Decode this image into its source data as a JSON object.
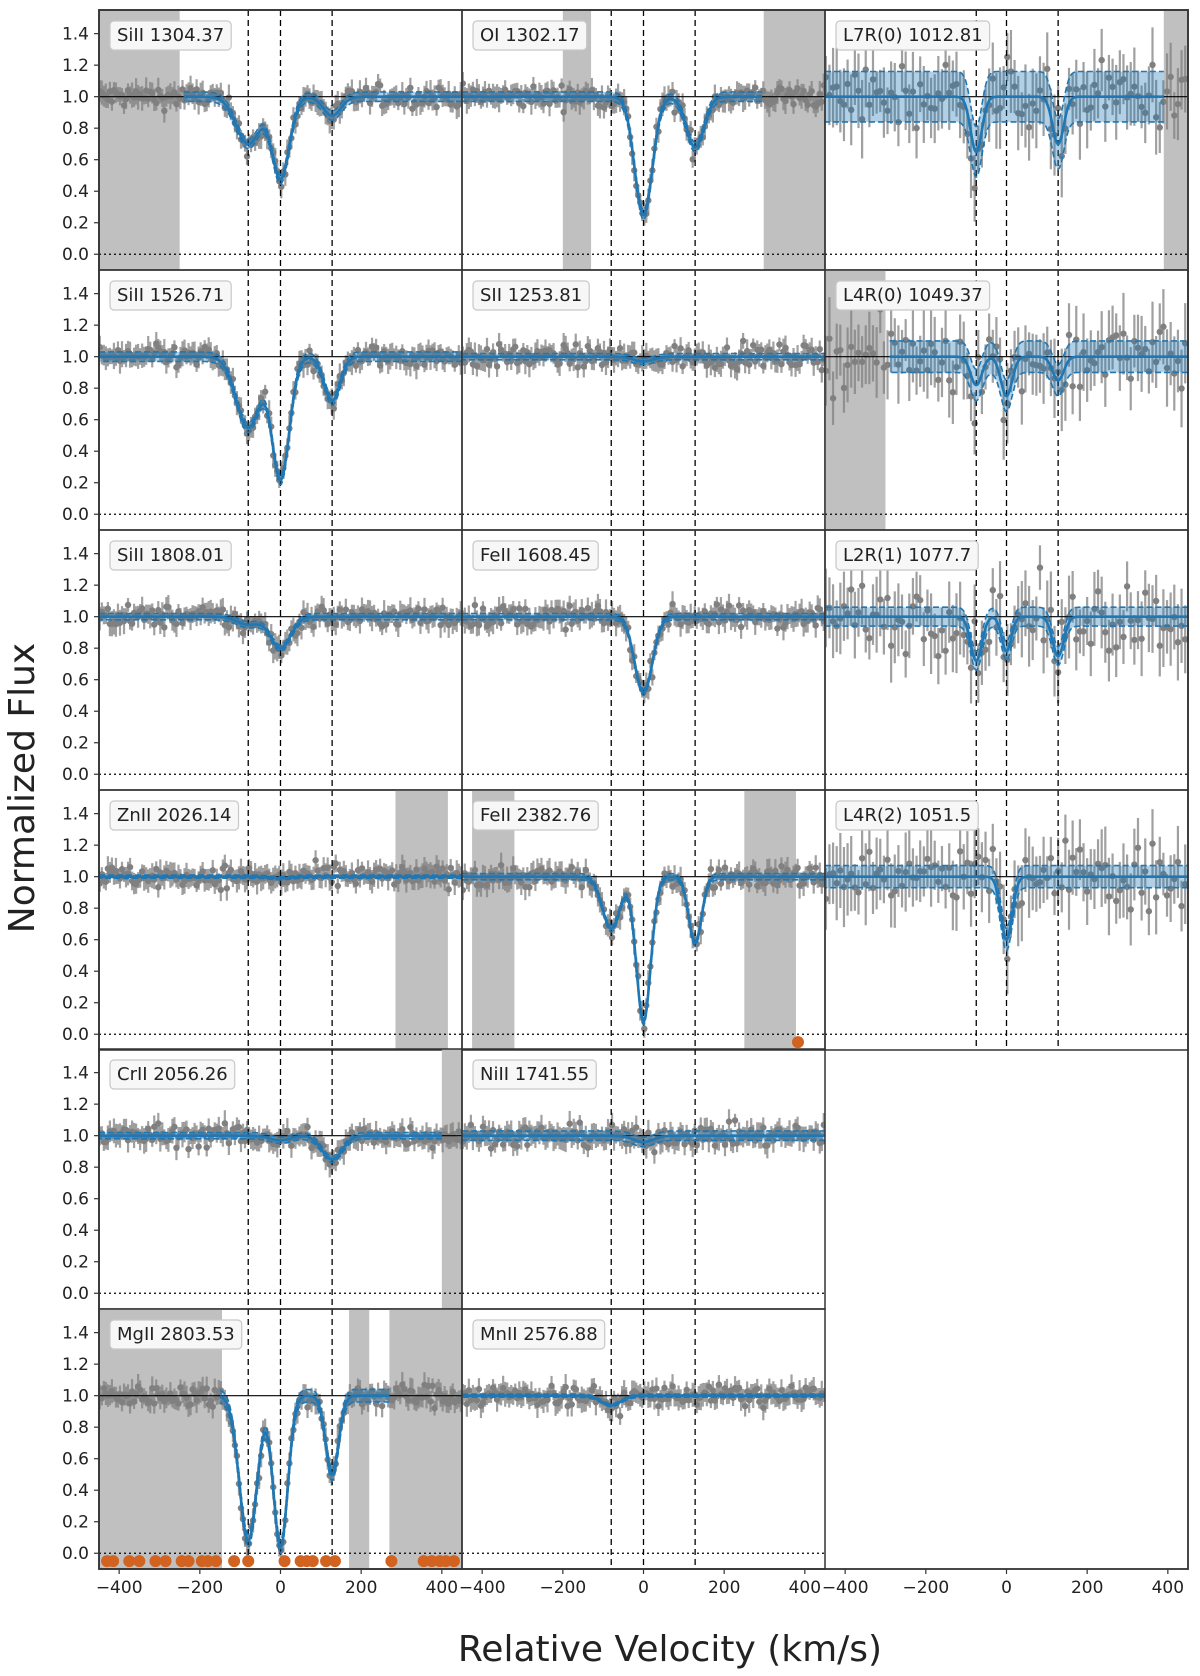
{
  "chart_data": {
    "type": "line",
    "title": "",
    "xlabel": "Relative Velocity (km/s)",
    "ylabel": "Normalized Flux",
    "xlim": [
      -450,
      450
    ],
    "ylim": [
      -0.1,
      1.55
    ],
    "x_ticks": [
      "-400",
      "-200",
      "0",
      "200",
      "400"
    ],
    "y_ticks": [
      "0.0",
      "0.2",
      "0.4",
      "0.6",
      "0.8",
      "1.0",
      "1.2",
      "1.4"
    ],
    "grid": "none",
    "colors": {
      "data": "#808080",
      "model": "#1f77b4",
      "masked": "#c0c0c0",
      "rejected": "#d2621f"
    },
    "layout": {
      "rows": 6,
      "cols": 3
    },
    "components": {
      "metal": [
        -80,
        0,
        128
      ],
      "molecular": [
        -75,
        0,
        128
      ]
    },
    "panels": [
      {
        "row": 0,
        "col": 0,
        "label": "SiII 1304.37",
        "comp": "metal",
        "model": {
          "start": -240,
          "end": 450,
          "depths": [
            0.3,
            0.52,
            0.12
          ],
          "widths": [
            30,
            22,
            22
          ],
          "band": 0.03
        },
        "masked": [
          [
            -450,
            -250
          ]
        ],
        "points": []
      },
      {
        "row": 0,
        "col": 1,
        "label": "OI 1302.17",
        "comp": "metal",
        "model": {
          "start": -450,
          "end": 295,
          "depths": [
            0.0,
            0.75,
            0.32
          ],
          "widths": [
            25,
            22,
            22
          ],
          "band": 0.03
        },
        "masked": [
          [
            -200,
            -130
          ],
          [
            298,
            450
          ]
        ],
        "points": []
      },
      {
        "row": 0,
        "col": 2,
        "label": "L7R(0) 1012.81",
        "comp": "molecular",
        "model": {
          "start": -450,
          "end": 390,
          "depths": [
            0.35,
            0.0,
            0.3
          ],
          "widths": [
            14,
            14,
            14
          ],
          "band": 0.16
        },
        "masked": [
          [
            390,
            450
          ]
        ],
        "points": []
      },
      {
        "row": 1,
        "col": 0,
        "label": "SiII 1526.71",
        "comp": "metal",
        "model": {
          "start": -450,
          "end": 450,
          "depths": [
            0.45,
            0.78,
            0.28
          ],
          "widths": [
            30,
            22,
            20
          ],
          "band": 0.03
        },
        "masked": [],
        "points": []
      },
      {
        "row": 1,
        "col": 1,
        "label": "SII 1253.81",
        "comp": "metal",
        "model": {
          "start": -450,
          "end": 450,
          "depths": [
            0.0,
            0.03,
            0.0
          ],
          "widths": [
            25,
            25,
            25
          ],
          "band": 0.02
        },
        "masked": [],
        "points": []
      },
      {
        "row": 1,
        "col": 2,
        "label": "L4R(0) 1049.37",
        "comp": "molecular",
        "model": {
          "start": -290,
          "end": 450,
          "depths": [
            0.18,
            0.25,
            0.15
          ],
          "widths": [
            14,
            14,
            14
          ],
          "band": 0.1
        },
        "masked": [
          [
            -450,
            -300
          ]
        ],
        "points": []
      },
      {
        "row": 2,
        "col": 0,
        "label": "SiII 1808.01",
        "comp": "metal",
        "model": {
          "start": -450,
          "end": 450,
          "depths": [
            0.05,
            0.2,
            0.0
          ],
          "widths": [
            28,
            25,
            22
          ],
          "band": 0.02
        },
        "masked": [],
        "points": []
      },
      {
        "row": 2,
        "col": 1,
        "label": "FeII 1608.45",
        "comp": "metal",
        "model": {
          "start": -450,
          "end": 450,
          "depths": [
            0.0,
            0.48,
            0.0
          ],
          "widths": [
            25,
            22,
            22
          ],
          "band": 0.02
        },
        "masked": [],
        "points": []
      },
      {
        "row": 2,
        "col": 2,
        "label": "L2R(1) 1077.7",
        "comp": "molecular",
        "model": {
          "start": -450,
          "end": 450,
          "depths": [
            0.28,
            0.22,
            0.25
          ],
          "widths": [
            14,
            12,
            14
          ],
          "band": 0.06
        },
        "masked": [],
        "points": []
      },
      {
        "row": 3,
        "col": 0,
        "label": "ZnII 2026.14",
        "comp": "metal",
        "model": {
          "start": -450,
          "end": 450,
          "depths": [
            0.0,
            0.01,
            0.0
          ],
          "widths": [
            25,
            25,
            25
          ],
          "band": 0.01
        },
        "masked": [
          [
            285,
            415
          ]
        ],
        "points": []
      },
      {
        "row": 3,
        "col": 1,
        "label": "FeII 2382.76",
        "comp": "metal",
        "model": {
          "start": -450,
          "end": 450,
          "depths": [
            0.33,
            0.92,
            0.42
          ],
          "widths": [
            22,
            18,
            16
          ],
          "band": 0.02
        },
        "masked": [
          [
            -425,
            -320
          ],
          [
            250,
            378
          ]
        ],
        "points": [
          [
            383,
            -0.05
          ]
        ]
      },
      {
        "row": 3,
        "col": 2,
        "label": "L4R(2) 1051.5",
        "comp": "molecular",
        "model": {
          "start": -450,
          "end": 450,
          "depths": [
            0.0,
            0.4,
            0.0
          ],
          "widths": [
            14,
            14,
            14
          ],
          "band": 0.07
        },
        "masked": [],
        "points": []
      },
      {
        "row": 4,
        "col": 0,
        "label": "CrII 2056.26",
        "comp": "metal",
        "model": {
          "start": -450,
          "end": 400,
          "depths": [
            0.0,
            0.03,
            0.15
          ],
          "widths": [
            25,
            25,
            25
          ],
          "band": 0.02
        },
        "masked": [
          [
            400,
            450
          ]
        ],
        "points": []
      },
      {
        "row": 4,
        "col": 1,
        "label": "NiII 1741.55",
        "comp": "metal",
        "model": {
          "start": -450,
          "end": 450,
          "depths": [
            0.0,
            0.04,
            0.0
          ],
          "widths": [
            25,
            25,
            25
          ],
          "band": 0.03
        },
        "masked": [],
        "points": []
      },
      {
        "row": 5,
        "col": 0,
        "label": "MgII 2803.53",
        "comp": "metal",
        "model": {
          "start": -150,
          "end": 270,
          "depths": [
            0.92,
            0.96,
            0.5
          ],
          "widths": [
            22,
            18,
            16
          ],
          "band": 0.04
        },
        "masked": [
          [
            -450,
            -145
          ],
          [
            170,
            220
          ],
          [
            270,
            450
          ]
        ],
        "points": [
          [
            -430,
            -0.05
          ],
          [
            -415,
            -0.05
          ],
          [
            -375,
            -0.05
          ],
          [
            -350,
            -0.05
          ],
          [
            -310,
            -0.05
          ],
          [
            -285,
            -0.05
          ],
          [
            -245,
            -0.05
          ],
          [
            -228,
            -0.05
          ],
          [
            -195,
            -0.05
          ],
          [
            -180,
            -0.05
          ],
          [
            -160,
            -0.05
          ],
          [
            -115,
            -0.05
          ],
          [
            -80,
            -0.05
          ],
          [
            10,
            -0.05
          ],
          [
            50,
            -0.05
          ],
          [
            65,
            -0.05
          ],
          [
            80,
            -0.05
          ],
          [
            113,
            -0.05
          ],
          [
            135,
            -0.05
          ],
          [
            275,
            -0.05
          ],
          [
            355,
            -0.05
          ],
          [
            375,
            -0.05
          ],
          [
            395,
            -0.05
          ],
          [
            410,
            -0.05
          ],
          [
            430,
            -0.05
          ]
        ]
      },
      {
        "row": 5,
        "col": 1,
        "label": "MnII 2576.88",
        "comp": "metal",
        "model": {
          "start": -450,
          "end": 450,
          "depths": [
            0.06,
            0.0,
            0.0
          ],
          "widths": [
            25,
            25,
            25
          ],
          "band": 0.01
        },
        "masked": [],
        "points": []
      }
    ]
  }
}
